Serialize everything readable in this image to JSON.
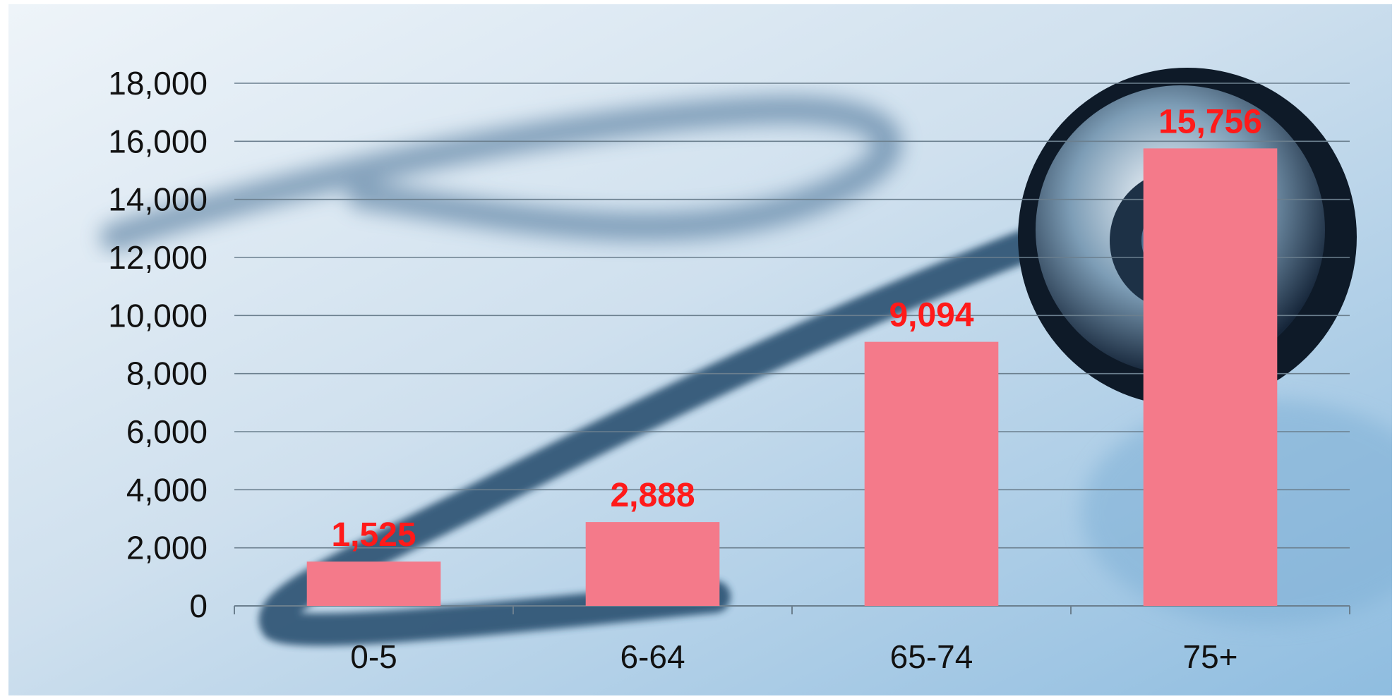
{
  "colors": {
    "bar": "#f47a8a",
    "data_label": "#ff1a1a",
    "gridline": "#6b7f8e",
    "axis": "#6b7f8e",
    "background_light": "#e3edf5",
    "background_mid": "#b9d2e6",
    "background_dark": "#7fb3d8",
    "stethoscope": "#2c5375"
  },
  "chart_data": {
    "type": "bar",
    "categories": [
      "0-5",
      "6-64",
      "65-74",
      "75+"
    ],
    "values": [
      1525,
      2888,
      9094,
      15756
    ],
    "data_labels": [
      "1,525",
      "2,888",
      "9,094",
      "15,756"
    ],
    "ylim": [
      0,
      18000
    ],
    "yticks": [
      0,
      2000,
      4000,
      6000,
      8000,
      10000,
      12000,
      14000,
      16000,
      18000
    ],
    "ytick_labels": [
      "0",
      "2,000",
      "4,000",
      "6,000",
      "8,000",
      "10,000",
      "12,000",
      "14,000",
      "16,000",
      "18,000"
    ],
    "grid": true,
    "legend": "none",
    "title": "",
    "xlabel": "",
    "ylabel": ""
  }
}
